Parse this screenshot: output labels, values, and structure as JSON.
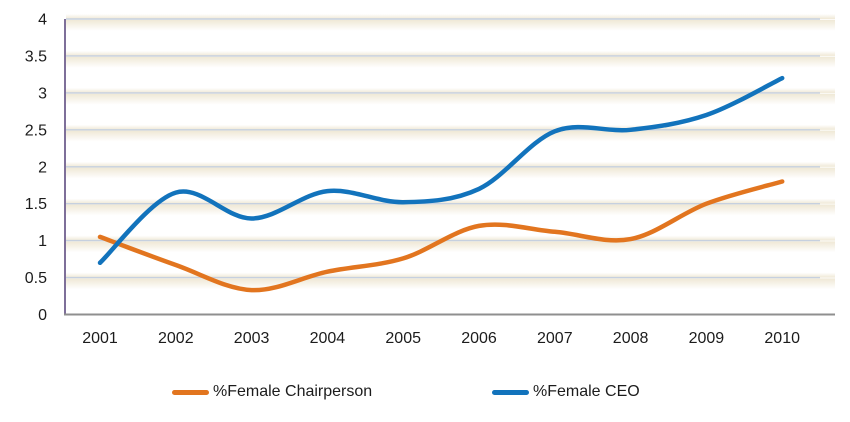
{
  "chart_data": {
    "type": "line",
    "title": "",
    "xlabel": "",
    "ylabel": "",
    "categories": [
      "2001",
      "2002",
      "2003",
      "2004",
      "2005",
      "2006",
      "2007",
      "2008",
      "2009",
      "2010"
    ],
    "series": [
      {
        "id": "female-chairperson",
        "name": "%Female Chairperson",
        "color": "#E2751F",
        "values": [
          1.05,
          0.67,
          0.33,
          0.58,
          0.76,
          1.2,
          1.12,
          1.02,
          1.5,
          1.8
        ]
      },
      {
        "id": "female-ceo",
        "name": "%Female CEO",
        "color": "#1273BC",
        "values": [
          0.7,
          1.65,
          1.3,
          1.67,
          1.52,
          1.7,
          2.48,
          2.5,
          2.7,
          3.2
        ]
      }
    ],
    "ylim": [
      0,
      4
    ],
    "yticks": [
      0,
      0.5,
      1,
      1.5,
      2,
      2.5,
      3,
      3.5,
      4
    ],
    "ytick_labels": [
      "0",
      "0.5",
      "1",
      "1.5",
      "2",
      "2.5",
      "3",
      "3.5",
      "4"
    ],
    "grid": true,
    "smooth": true,
    "legend_position": "bottom"
  },
  "colors": {
    "gridline": "#C6D0DF",
    "y_axis": "#7E6F99",
    "x_axis": "#8F8F8F",
    "stripe_beige": "#EFE8D5",
    "white": "#FFFFFF",
    "tick_text": "#1C1C1C"
  }
}
